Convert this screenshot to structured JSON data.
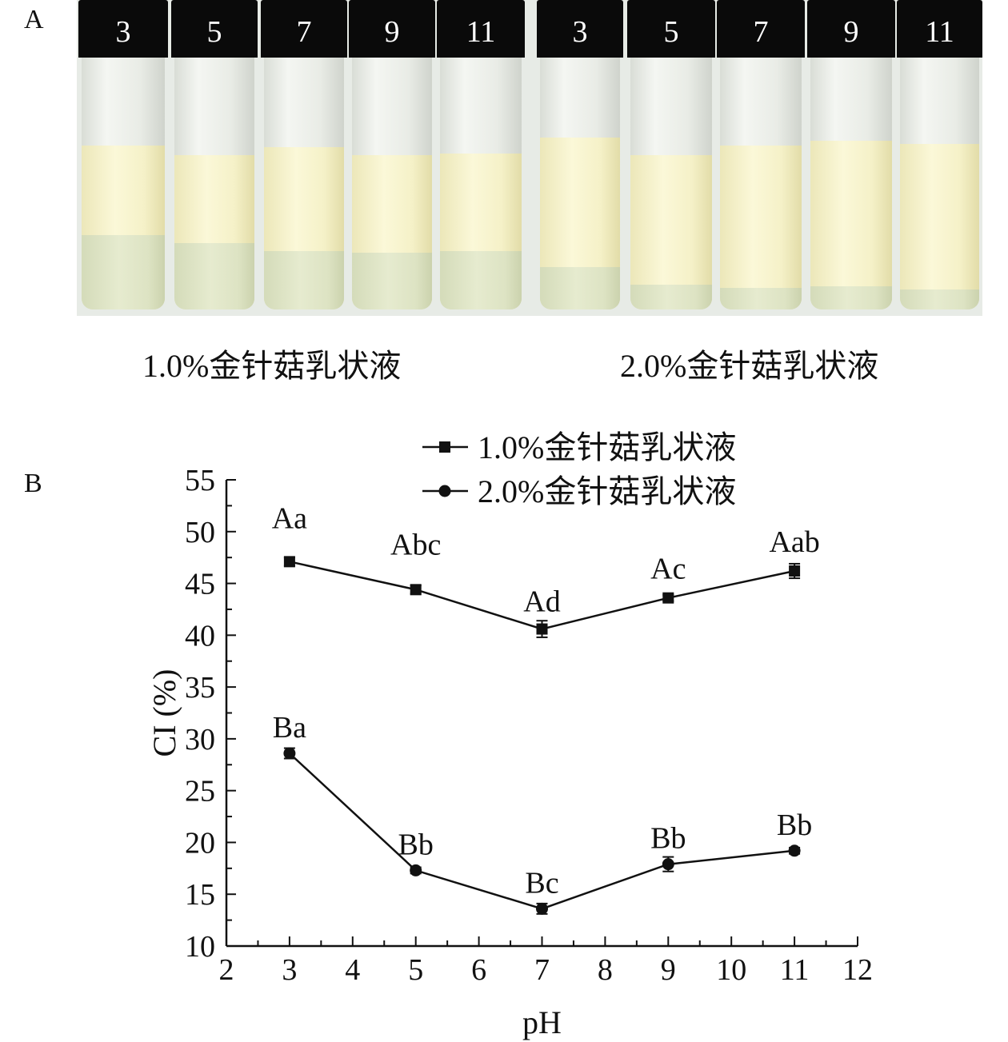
{
  "panel_a": {
    "label": "A",
    "vial_labels": [
      "3",
      "5",
      "7",
      "9",
      "11",
      "3",
      "5",
      "7",
      "9",
      "11"
    ],
    "caption_left": "1.0%金针菇乳状液",
    "caption_right": "2.0%金针菇乳状液"
  },
  "panel_b_label": "B",
  "chart_data": {
    "type": "line",
    "xlabel": "pH",
    "ylabel": "CI (%)",
    "xlim": [
      2,
      12
    ],
    "ylim": [
      10,
      55
    ],
    "x_ticks": [
      2,
      3,
      4,
      5,
      6,
      7,
      8,
      9,
      10,
      11,
      12
    ],
    "y_ticks": [
      10,
      15,
      20,
      25,
      30,
      35,
      40,
      45,
      50,
      55
    ],
    "grid": false,
    "legend_position": "top-right",
    "series": [
      {
        "name": "1.0%金针菇乳状液",
        "marker": "square",
        "x": [
          3,
          5,
          7,
          9,
          11
        ],
        "y": [
          47.1,
          44.4,
          40.6,
          43.6,
          46.2
        ],
        "error": [
          0.4,
          0.4,
          0.8,
          0.3,
          0.7
        ],
        "labels": [
          "Aa",
          "Abc",
          "Ad",
          "Ac",
          "Aab"
        ]
      },
      {
        "name": "2.0%金针菇乳状液",
        "marker": "circle",
        "x": [
          3,
          5,
          7,
          9,
          11
        ],
        "y": [
          28.6,
          17.3,
          13.6,
          17.9,
          19.2
        ],
        "error": [
          0.5,
          0.3,
          0.5,
          0.7,
          0.3
        ],
        "labels": [
          "Ba",
          "Bb",
          "Bc",
          "Bb",
          "Bb"
        ]
      }
    ]
  }
}
